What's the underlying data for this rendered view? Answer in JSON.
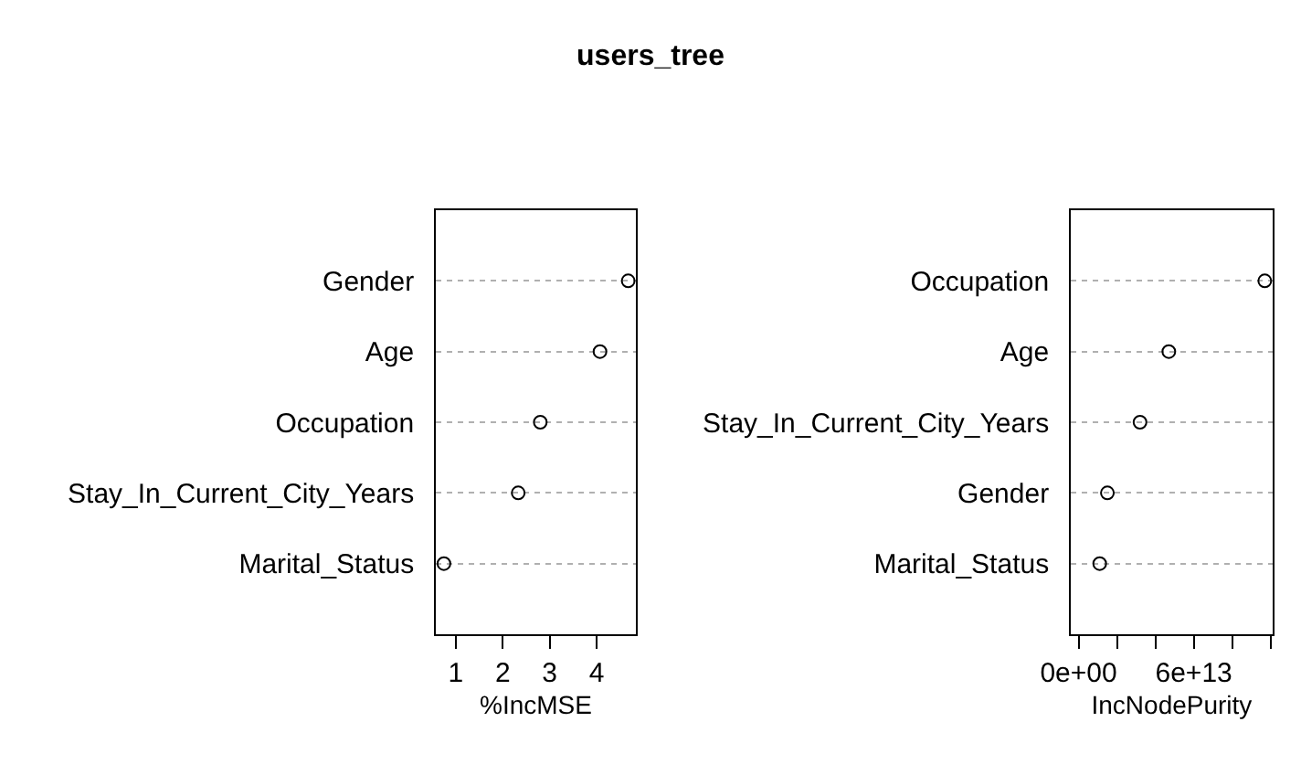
{
  "chart_data": [
    {
      "type": "scatter",
      "title": "users_tree",
      "orientation": "horizontal",
      "categories": [
        "Gender",
        "Age",
        "Occupation",
        "Stay_In_Current_City_Years",
        "Marital_Status"
      ],
      "series": [
        {
          "color": "#000000",
          "values": [
            4.67,
            4.07,
            2.8,
            2.33,
            0.75
          ]
        }
      ],
      "xlabel": "%IncMSE",
      "xlim": [
        0.58,
        4.83
      ],
      "xticks": [
        1,
        2,
        3,
        4
      ],
      "grid": "y",
      "marker": "circle"
    },
    {
      "type": "scatter",
      "orientation": "horizontal",
      "categories": [
        "Occupation",
        "Age",
        "Stay_In_Current_City_Years",
        "Gender",
        "Marital_Status"
      ],
      "series": [
        {
          "color": "#000000",
          "values": [
            97000000000000.0,
            47000000000000.0,
            32000000000000.0,
            15000000000000.0,
            11000000000000.0
          ]
        }
      ],
      "xlabel": "IncNodePurity",
      "xlim": [
        -4000000000000.0,
        101000000000000.0
      ],
      "xticks": [
        {
          "value": 0,
          "label": "0e+00"
        },
        {
          "value": 20000000000000.0,
          "label": null
        },
        {
          "value": 40000000000000.0,
          "label": null
        },
        {
          "value": 60000000000000.0,
          "label": "6e+13"
        },
        {
          "value": 80000000000000.0,
          "label": null
        },
        {
          "value": 100000000000000.0,
          "label": null
        }
      ],
      "grid": "y",
      "marker": "circle"
    }
  ]
}
